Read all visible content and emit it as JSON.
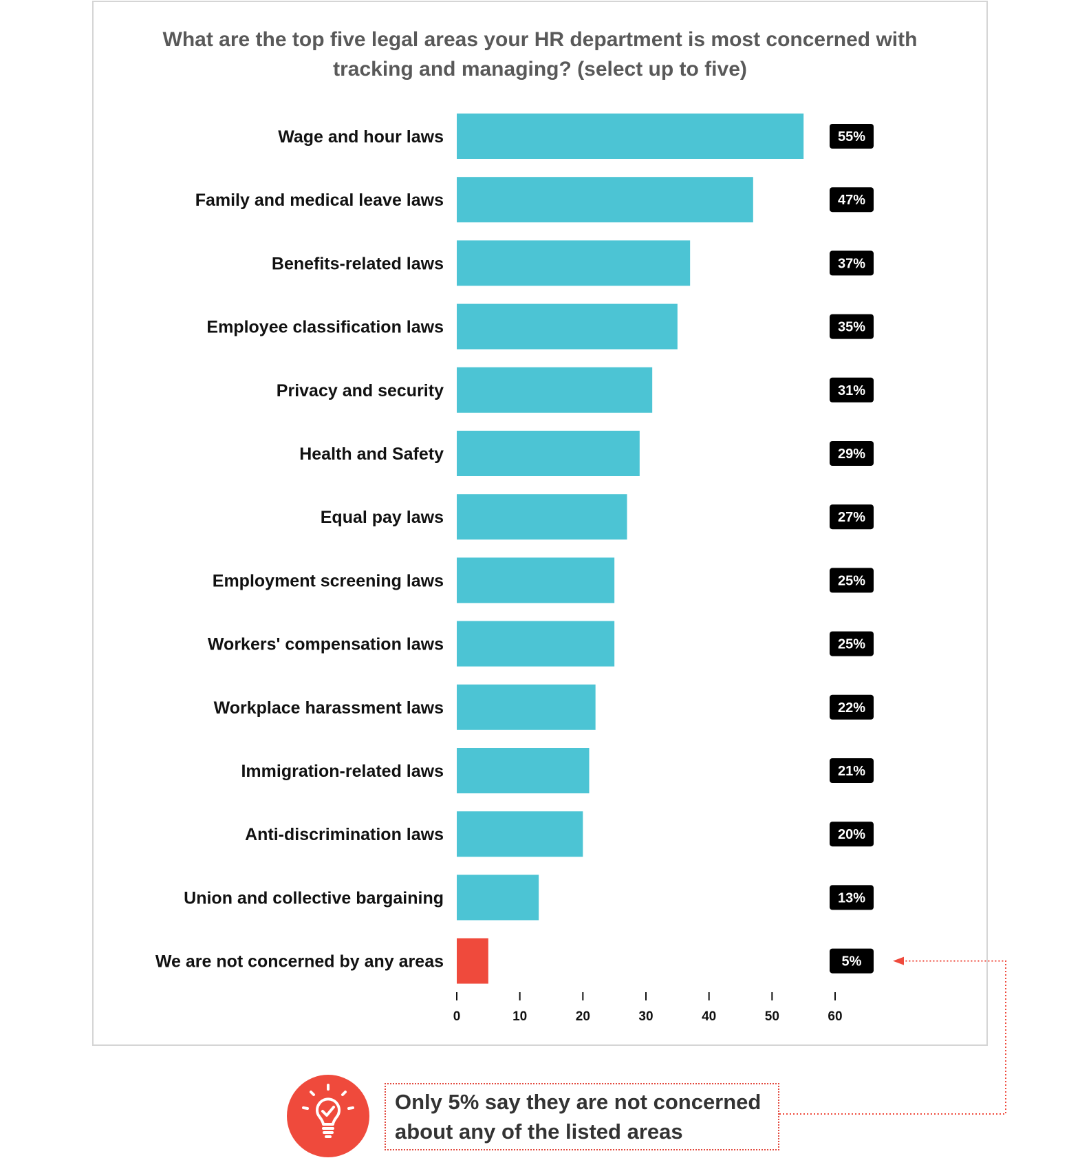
{
  "chart_data": {
    "type": "bar",
    "orientation": "horizontal",
    "title_lines": [
      "What are the top five legal areas your HR department is most concerned with",
      "tracking and managing? (select up to five)"
    ],
    "categories": [
      "Wage and hour laws",
      "Family and medical leave laws",
      "Benefits-related laws",
      "Employee classification laws",
      "Privacy and security",
      "Health and Safety",
      "Equal pay laws",
      "Employment screening laws",
      "Workers' compensation laws",
      "Workplace harassment laws",
      "Immigration-related laws",
      "Anti-discrimination laws",
      "Union and collective bargaining",
      "We are not concerned by any areas"
    ],
    "values": [
      55,
      47,
      37,
      35,
      31,
      29,
      27,
      25,
      25,
      22,
      21,
      20,
      13,
      5
    ],
    "value_labels": [
      "55%",
      "47%",
      "37%",
      "35%",
      "31%",
      "29%",
      "27%",
      "25%",
      "25%",
      "22%",
      "21%",
      "20%",
      "13%",
      "5%"
    ],
    "xlim": [
      0,
      60
    ],
    "x_ticks": [
      0,
      10,
      20,
      30,
      40,
      50,
      60
    ],
    "grid": false,
    "legend": "none",
    "colors": {
      "bar": "#4cc4d4",
      "highlight_bar": "#ef4a3c",
      "label_badge": "#000000"
    },
    "highlight_index": 13
  },
  "callout": {
    "lines": [
      "Only 5% say they are not concerned",
      "about any of the listed areas"
    ],
    "icon": "lightbulb-check-icon",
    "accent_color": "#ef4a3c"
  }
}
